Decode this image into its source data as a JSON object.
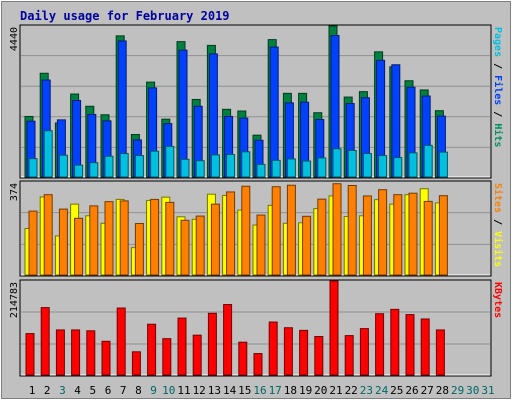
{
  "chart_data": {
    "type": "bar",
    "title": "Daily usage for February 2019",
    "categories": [
      "1",
      "2",
      "3",
      "4",
      "5",
      "6",
      "7",
      "8",
      "9",
      "10",
      "11",
      "12",
      "13",
      "14",
      "15",
      "16",
      "17",
      "18",
      "19",
      "20",
      "21",
      "22",
      "23",
      "24",
      "25",
      "26",
      "27",
      "28",
      "29",
      "30",
      "31"
    ],
    "day_label_colors": [
      "#000000",
      "#000000",
      "#006666",
      "#000000",
      "#000000",
      "#000000",
      "#000000",
      "#000000",
      "#006666",
      "#006666",
      "#000000",
      "#000000",
      "#000000",
      "#000000",
      "#000000",
      "#006666",
      "#006666",
      "#000000",
      "#000000",
      "#000000",
      "#000000",
      "#000000",
      "#006666",
      "#006666",
      "#000000",
      "#000000",
      "#000000",
      "#000000",
      "#006666",
      "#006666",
      "#006666"
    ],
    "panels": [
      {
        "id": "hits",
        "ymax_label": "4440",
        "ymax": 4440,
        "legend": [
          {
            "text": "Pages",
            "color": "#00C0E0"
          },
          {
            "text": " / ",
            "color": "#000000"
          },
          {
            "text": "Files",
            "color": "#0040FF"
          },
          {
            "text": " / ",
            "color": "#000000"
          },
          {
            "text": "Hits",
            "color": "#009060"
          }
        ],
        "series": [
          {
            "name": "Hits",
            "color": "#008040",
            "values": [
              1780,
              3050,
              1590,
              2440,
              2080,
              1830,
              4150,
              1250,
              2790,
              1700,
              3980,
              2280,
              3870,
              1990,
              1940,
              1230,
              4040,
              2460,
              2460,
              1890,
              4440,
              2350,
              2510,
              3680,
              3240,
              2830,
              2560,
              1950
            ]
          },
          {
            "name": "Files",
            "color": "#0040FF",
            "values": [
              1640,
              2850,
              1680,
              2250,
              1840,
              1650,
              4000,
              1090,
              2620,
              1570,
              3730,
              2080,
              3620,
              1780,
              1730,
              1080,
              3820,
              2180,
              2200,
              1690,
              4160,
              2160,
              2330,
              3430,
              3300,
              2640,
              2380,
              1790
            ]
          },
          {
            "name": "Pages",
            "color": "#00C0E0",
            "values": [
              540,
              1360,
              640,
              350,
              420,
              610,
              690,
              630,
              760,
              900,
              520,
              480,
              650,
              660,
              740,
              370,
              490,
              530,
              470,
              560,
              830,
              780,
              690,
              630,
              570,
              710,
              930,
              730
            ]
          }
        ]
      },
      {
        "id": "visits",
        "ymax_label": "374",
        "ymax": 374,
        "legend": [
          {
            "text": "Sites",
            "color": "#FF8000"
          },
          {
            "text": " / ",
            "color": "#000000"
          },
          {
            "text": "Visits",
            "color": "#FFFF00"
          }
        ],
        "series": [
          {
            "name": "Visits",
            "color": "#FFFF00",
            "values": [
              187,
              314,
              157,
              285,
              238,
              208,
              304,
              110,
              300,
              313,
              234,
              224,
              325,
              320,
              261,
              201,
              280,
              208,
              210,
              267,
              318,
              235,
              238,
              303,
              285,
              323,
              347,
              290
            ]
          },
          {
            "name": "Sites",
            "color": "#FF8000",
            "values": [
              257,
              323,
              265,
              228,
              278,
              295,
              298,
              207,
              304,
              292,
              220,
              237,
              285,
              334,
              357,
              241,
              355,
              361,
              236,
              305,
              367,
              360,
              318,
              343,
              323,
              329,
              296,
              319
            ]
          }
        ]
      },
      {
        "id": "kbytes",
        "ymax_label": "214783",
        "ymax": 214783,
        "legend": [
          {
            "text": "KBytes",
            "color": "#FF0000"
          }
        ],
        "series": [
          {
            "name": "KBytes",
            "color": "#FF0000",
            "values": [
              94550,
              154000,
              103000,
              103000,
              101000,
              77000,
              153000,
              53000,
              116000,
              83000,
              130000,
              91000,
              141000,
              161000,
              75000,
              49000,
              121000,
              108000,
              102000,
              88000,
              214783,
              90000,
              106000,
              140000,
              150000,
              138000,
              128000,
              103000
            ]
          }
        ]
      }
    ]
  }
}
